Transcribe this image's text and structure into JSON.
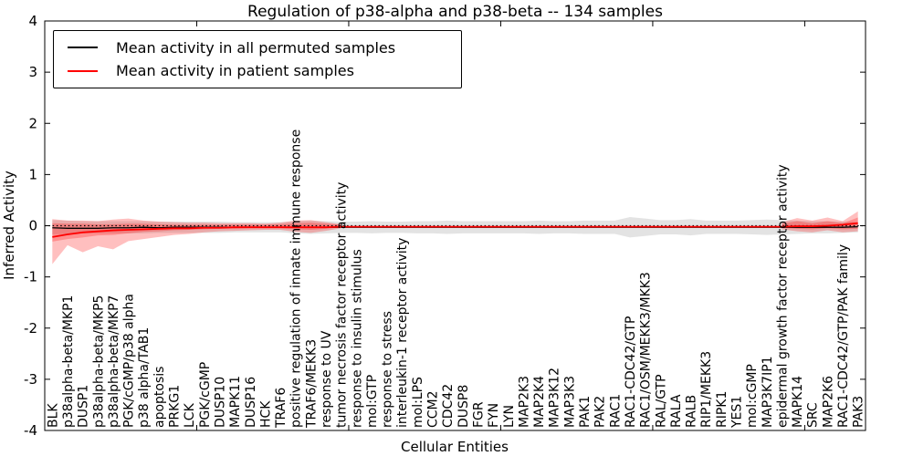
{
  "chart_data": {
    "type": "line",
    "title": "Regulation of p38-alpha and p38-beta -- 134 samples",
    "xlabel": "Cellular Entities",
    "ylabel": "Inferred Activity",
    "ylim": [
      -4,
      4
    ],
    "yticks": [
      -4,
      -3,
      -2,
      -1,
      0,
      1,
      2,
      3,
      4
    ],
    "xtick_positions": [
      10,
      20,
      30,
      40,
      50
    ],
    "grid": false,
    "legend_position": "upper left",
    "zero_reference_line": 0,
    "legend": [
      {
        "label": "Mean activity in all permuted samples",
        "color": "#000000"
      },
      {
        "label": "Mean activity in patient samples",
        "color": "#ff0000"
      }
    ],
    "categories": [
      "BLK",
      "p38alpha-beta/MKP1",
      "DUSP1",
      "p38alpha-beta/MKP5",
      "p38alpha-beta/MKP7",
      "PGK/cGMP/p38 alpha",
      "p38 alpha/TAB1",
      "apoptosis",
      "PRKG1",
      "LCK",
      "PGK/cGMP",
      "DUSP10",
      "MAPK11",
      "DUSP16",
      "HCK",
      "TRAF6",
      "positive regulation of innate immune response",
      "TRAF6/MEKK3",
      "response to UV",
      "tumor necrosis factor receptor activity",
      "response to insulin stimulus",
      "mol:GTP",
      "response to stress",
      "interleukin-1 receptor activity",
      "mol:LPS",
      "CCM2",
      "CDC42",
      "DUSP8",
      "FGR",
      "FYN",
      "LYN",
      "MAP2K3",
      "MAP2K4",
      "MAP3K12",
      "MAP3K3",
      "PAK1",
      "PAK2",
      "RAC1",
      "RAC1-CDC42/GTP",
      "RAC1/OSM/MEKK3/MKK3",
      "RAL/GTP",
      "RALA",
      "RALB",
      "RIP1/MEKK3",
      "RIPK1",
      "YES1",
      "mol:cGMP",
      "MAP3K7IP1",
      "epidermal growth factor receptor activity",
      "MAPK14",
      "SRC",
      "MAP2K6",
      "RAC1-CDC42/GTP/PAK family",
      "PAK3"
    ],
    "series": [
      {
        "name": "Mean activity in all permuted samples",
        "color": "#000000",
        "width": 1.3,
        "values": [
          -0.04,
          -0.05,
          -0.05,
          -0.05,
          -0.04,
          -0.04,
          -0.03,
          -0.04,
          -0.03,
          -0.03,
          -0.03,
          -0.03,
          -0.03,
          -0.03,
          -0.03,
          -0.03,
          -0.03,
          -0.03,
          -0.03,
          -0.03,
          -0.03,
          -0.03,
          -0.03,
          -0.03,
          -0.03,
          -0.03,
          -0.03,
          -0.03,
          -0.03,
          -0.03,
          -0.03,
          -0.03,
          -0.03,
          -0.03,
          -0.03,
          -0.03,
          -0.03,
          -0.03,
          -0.03,
          -0.03,
          -0.03,
          -0.03,
          -0.03,
          -0.03,
          -0.03,
          -0.03,
          -0.03,
          -0.03,
          -0.03,
          -0.03,
          -0.03,
          -0.03,
          -0.03,
          -0.02
        ]
      },
      {
        "name": "Mean activity in patient samples",
        "color": "#ff0000",
        "width": 1.8,
        "values": [
          -0.22,
          -0.17,
          -0.13,
          -0.11,
          -0.09,
          -0.08,
          -0.07,
          -0.06,
          -0.05,
          -0.05,
          -0.04,
          -0.04,
          -0.03,
          -0.03,
          -0.03,
          -0.03,
          -0.03,
          -0.03,
          -0.03,
          -0.02,
          -0.02,
          -0.02,
          -0.02,
          -0.02,
          -0.02,
          -0.02,
          -0.02,
          -0.02,
          -0.02,
          -0.02,
          -0.02,
          -0.02,
          -0.02,
          -0.02,
          -0.02,
          -0.02,
          -0.02,
          -0.02,
          -0.02,
          -0.02,
          -0.02,
          -0.02,
          -0.02,
          -0.02,
          -0.02,
          -0.02,
          -0.02,
          -0.02,
          -0.02,
          -0.01,
          -0.01,
          0.0,
          0.02,
          0.05
        ]
      }
    ],
    "bands": [
      {
        "name": "permuted-samples-range-band",
        "color": "#000000",
        "opacity": 0.11,
        "bounds": [
          [
            -0.17,
            0.11
          ],
          [
            -0.16,
            0.1
          ],
          [
            -0.15,
            0.09
          ],
          [
            -0.15,
            0.09
          ],
          [
            -0.15,
            0.09
          ],
          [
            -0.15,
            0.09
          ],
          [
            -0.15,
            0.09
          ],
          [
            -0.14,
            0.08
          ],
          [
            -0.14,
            0.08
          ],
          [
            -0.14,
            0.08
          ],
          [
            -0.14,
            0.08
          ],
          [
            -0.14,
            0.08
          ],
          [
            -0.13,
            0.07
          ],
          [
            -0.13,
            0.07
          ],
          [
            -0.13,
            0.07
          ],
          [
            -0.13,
            0.07
          ],
          [
            -0.15,
            0.09
          ],
          [
            -0.16,
            0.1
          ],
          [
            -0.15,
            0.09
          ],
          [
            -0.14,
            0.08
          ],
          [
            -0.14,
            0.08
          ],
          [
            -0.15,
            0.09
          ],
          [
            -0.14,
            0.08
          ],
          [
            -0.14,
            0.08
          ],
          [
            -0.15,
            0.09
          ],
          [
            -0.15,
            0.09
          ],
          [
            -0.16,
            0.1
          ],
          [
            -0.15,
            0.09
          ],
          [
            -0.15,
            0.09
          ],
          [
            -0.15,
            0.09
          ],
          [
            -0.15,
            0.09
          ],
          [
            -0.15,
            0.09
          ],
          [
            -0.16,
            0.1
          ],
          [
            -0.15,
            0.09
          ],
          [
            -0.15,
            0.09
          ],
          [
            -0.16,
            0.1
          ],
          [
            -0.16,
            0.1
          ],
          [
            -0.16,
            0.1
          ],
          [
            -0.23,
            0.17
          ],
          [
            -0.2,
            0.14
          ],
          [
            -0.17,
            0.11
          ],
          [
            -0.17,
            0.11
          ],
          [
            -0.19,
            0.13
          ],
          [
            -0.16,
            0.1
          ],
          [
            -0.16,
            0.1
          ],
          [
            -0.16,
            0.1
          ],
          [
            -0.17,
            0.11
          ],
          [
            -0.18,
            0.12
          ],
          [
            -0.17,
            0.11
          ],
          [
            -0.16,
            0.1
          ],
          [
            -0.15,
            0.09
          ],
          [
            -0.15,
            0.09
          ],
          [
            -0.14,
            0.08
          ],
          [
            -0.13,
            0.07
          ]
        ]
      },
      {
        "name": "patient-samples-outer-band",
        "color": "#ff0000",
        "opacity": 0.25,
        "bounds": [
          [
            -0.75,
            0.13
          ],
          [
            -0.38,
            0.1
          ],
          [
            -0.52,
            0.1
          ],
          [
            -0.4,
            0.09
          ],
          [
            -0.46,
            0.12
          ],
          [
            -0.3,
            0.14
          ],
          [
            -0.26,
            0.1
          ],
          [
            -0.22,
            0.08
          ],
          [
            -0.18,
            0.07
          ],
          [
            -0.16,
            0.06
          ],
          [
            -0.13,
            0.06
          ],
          [
            -0.11,
            0.05
          ],
          [
            -0.1,
            0.05
          ],
          [
            -0.09,
            0.05
          ],
          [
            -0.08,
            0.04
          ],
          [
            -0.08,
            0.06
          ],
          [
            -0.12,
            0.1
          ],
          [
            -0.14,
            0.11
          ],
          [
            -0.1,
            0.07
          ],
          [
            -0.05,
            0.03
          ],
          null,
          null,
          null,
          null,
          null,
          null,
          null,
          null,
          null,
          null,
          null,
          null,
          null,
          null,
          null,
          null,
          null,
          null,
          null,
          null,
          null,
          null,
          null,
          null,
          null,
          null,
          null,
          null,
          [
            -0.07,
            0.07
          ],
          [
            -0.11,
            0.15
          ],
          [
            -0.13,
            0.1
          ],
          [
            -0.09,
            0.16
          ],
          [
            -0.13,
            0.09
          ],
          [
            -0.11,
            0.28
          ]
        ]
      },
      {
        "name": "patient-samples-inner-band",
        "color": "#ff0000",
        "opacity": 0.25,
        "bounds": [
          [
            -0.31,
            0.05
          ],
          [
            -0.26,
            0.04
          ],
          [
            -0.23,
            0.04
          ],
          [
            -0.19,
            0.03
          ],
          [
            -0.18,
            0.03
          ],
          [
            -0.15,
            0.04
          ],
          [
            -0.12,
            0.04
          ],
          [
            -0.11,
            0.03
          ],
          [
            -0.09,
            0.02
          ],
          [
            -0.08,
            0.02
          ],
          [
            -0.07,
            0.02
          ],
          [
            -0.06,
            0.02
          ],
          [
            -0.06,
            0.02
          ],
          [
            -0.05,
            0.02
          ],
          [
            -0.05,
            0.02
          ],
          [
            -0.05,
            0.03
          ],
          [
            -0.07,
            0.05
          ],
          [
            -0.08,
            0.06
          ],
          [
            -0.06,
            0.04
          ],
          [
            -0.03,
            0.02
          ],
          null,
          null,
          null,
          null,
          null,
          null,
          null,
          null,
          null,
          null,
          null,
          null,
          null,
          null,
          null,
          null,
          null,
          null,
          null,
          null,
          null,
          null,
          null,
          null,
          null,
          null,
          null,
          null,
          [
            -0.04,
            0.04
          ],
          [
            -0.06,
            0.09
          ],
          [
            -0.07,
            0.05
          ],
          [
            -0.05,
            0.09
          ],
          [
            -0.07,
            0.05
          ],
          [
            -0.06,
            0.16
          ]
        ]
      }
    ]
  }
}
